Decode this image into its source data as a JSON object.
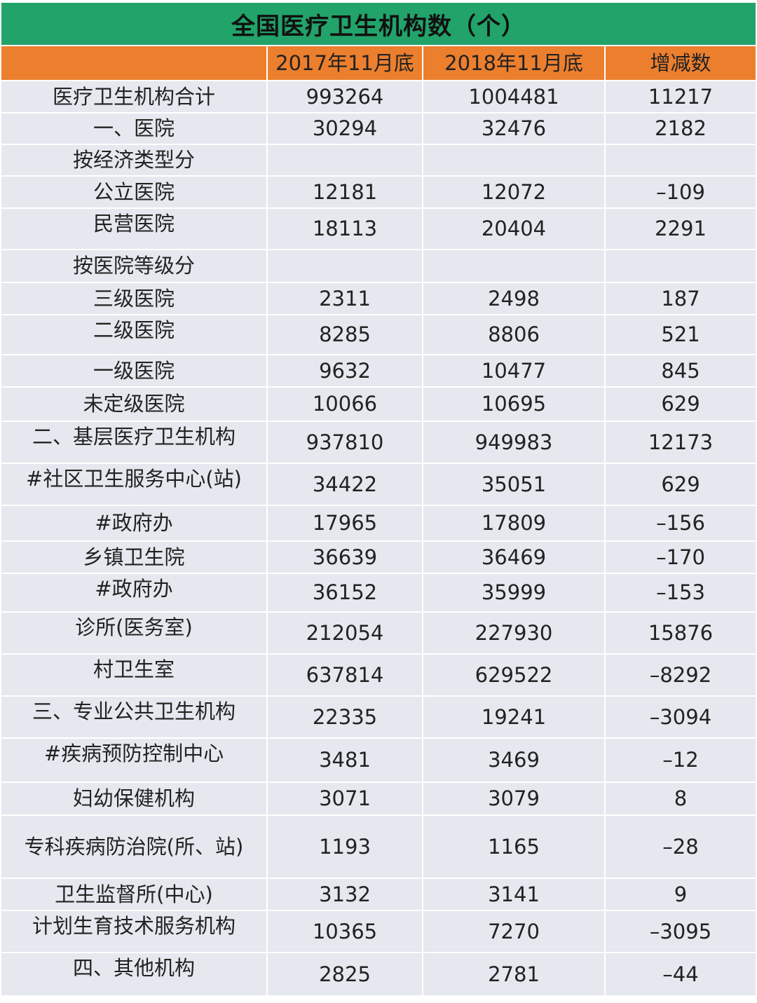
{
  "colors": {
    "title_bg": "#22a36a",
    "header_bg": "#ec7f2e",
    "cell_bg": "#e5e8ee"
  },
  "chart_data": {
    "type": "table",
    "title": "全国医疗卫生机构数（个）",
    "columns": [
      "",
      "2017年11月底",
      "2018年11月底",
      "增减数"
    ],
    "rows": [
      [
        "医疗卫生机构合计",
        "993264",
        "1004481",
        "11217"
      ],
      [
        "一、医院",
        "30294",
        "32476",
        "2182"
      ],
      [
        "按经济类型分",
        "",
        "",
        ""
      ],
      [
        "公立医院",
        "12181",
        "12072",
        "–109"
      ],
      [
        "民营医院",
        "18113",
        "20404",
        "2291"
      ],
      [
        "按医院等级分",
        "",
        "",
        ""
      ],
      [
        "三级医院",
        "2311",
        "2498",
        "187"
      ],
      [
        "二级医院",
        "8285",
        "8806",
        "521"
      ],
      [
        "一级医院",
        "9632",
        "10477",
        "845"
      ],
      [
        "未定级医院",
        "10066",
        "10695",
        "629"
      ],
      [
        "二、基层医疗卫生机构",
        "937810",
        "949983",
        "12173"
      ],
      [
        "#社区卫生服务中心(站)",
        "34422",
        "35051",
        "629"
      ],
      [
        "#政府办",
        "17965",
        "17809",
        "–156"
      ],
      [
        "乡镇卫生院",
        "36639",
        "36469",
        "–170"
      ],
      [
        "#政府办",
        "36152",
        "35999",
        "–153"
      ],
      [
        "诊所(医务室)",
        "212054",
        "227930",
        "15876"
      ],
      [
        "村卫生室",
        "637814",
        "629522",
        "–8292"
      ],
      [
        "三、专业公共卫生机构",
        "22335",
        "19241",
        "–3094"
      ],
      [
        "#疾病预防控制中心",
        "3481",
        "3469",
        "–12"
      ],
      [
        "妇幼保健机构",
        "3071",
        "3079",
        "8"
      ],
      [
        "专科疾病防治院(所、站)",
        "1193",
        "1165",
        "–28"
      ],
      [
        "卫生监督所(中心)",
        "3132",
        "3141",
        "9"
      ],
      [
        "计划生育技术服务机构",
        "10365",
        "7270",
        "–3095"
      ],
      [
        "四、其他机构",
        "2825",
        "2781",
        "–44"
      ]
    ]
  }
}
